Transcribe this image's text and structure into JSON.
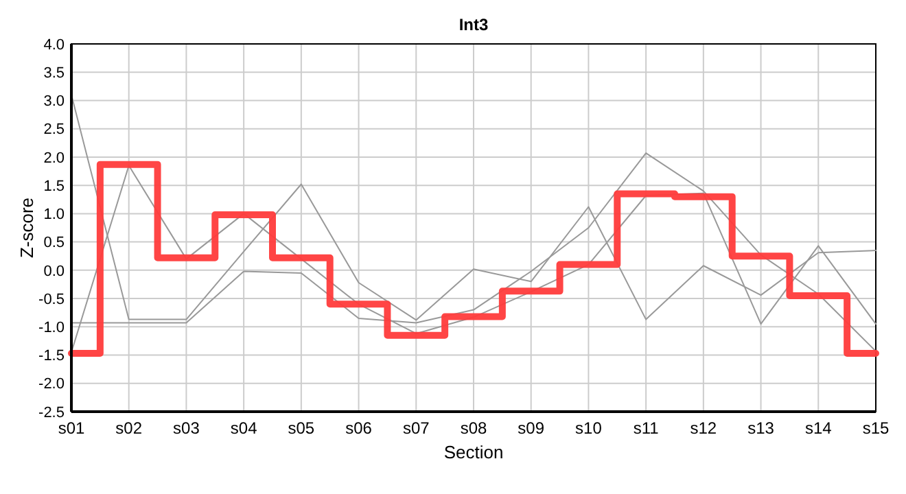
{
  "chart_data": {
    "type": "line",
    "title": "Int3",
    "xlabel": "Section",
    "ylabel": "Z-score",
    "categories": [
      "s01",
      "s02",
      "s03",
      "s04",
      "s05",
      "s06",
      "s07",
      "s08",
      "s09",
      "s10",
      "s11",
      "s12",
      "s13",
      "s14",
      "s15"
    ],
    "series": [
      {
        "color": "#999999",
        "values": [
          3.1,
          -0.87,
          -0.87,
          0.33,
          1.52,
          -0.22,
          -0.88,
          0.02,
          -0.2,
          1.12,
          -0.87,
          0.08,
          -0.44,
          0.31,
          0.35
        ]
      },
      {
        "color": "#999999",
        "values": [
          -0.93,
          -0.93,
          -0.93,
          -0.02,
          -0.05,
          -0.85,
          -0.93,
          -0.7,
          -0.02,
          0.75,
          2.07,
          1.4,
          0.27,
          -0.42,
          -1.43
        ]
      },
      {
        "color": "#999999",
        "values": [
          -1.45,
          1.85,
          0.2,
          1.0,
          0.2,
          -0.6,
          -1.12,
          -0.83,
          -0.38,
          0.1,
          1.32,
          1.36,
          -0.95,
          0.43,
          -0.95
        ]
      },
      {
        "type": "step",
        "color": "#ff3b3b",
        "values": [
          -1.47,
          1.87,
          0.22,
          0.98,
          0.22,
          -0.6,
          -1.15,
          -0.82,
          -0.37,
          0.1,
          1.35,
          1.3,
          0.25,
          -0.45,
          -1.47
        ]
      }
    ],
    "ylim": [
      -2.5,
      4.0
    ],
    "yticks": [
      {
        "value": -2.5,
        "label": "-2.5"
      },
      {
        "value": -2,
        "label": "-2.0"
      },
      {
        "value": -1.5,
        "label": "-1.5"
      },
      {
        "value": -1,
        "label": "-1.0"
      },
      {
        "value": -0.5,
        "label": "-0.5"
      },
      {
        "value": 0,
        "label": "0.0"
      },
      {
        "value": 0.5,
        "label": "0.5"
      },
      {
        "value": 1,
        "label": "1.0"
      },
      {
        "value": 1.5,
        "label": "1.5"
      },
      {
        "value": 2,
        "label": "2.0"
      },
      {
        "value": 2.5,
        "label": "2.5"
      },
      {
        "value": 3,
        "label": "3.0"
      },
      {
        "value": 3.5,
        "label": "3.5"
      },
      {
        "value": 4,
        "label": "4.0"
      }
    ],
    "grid": true
  }
}
